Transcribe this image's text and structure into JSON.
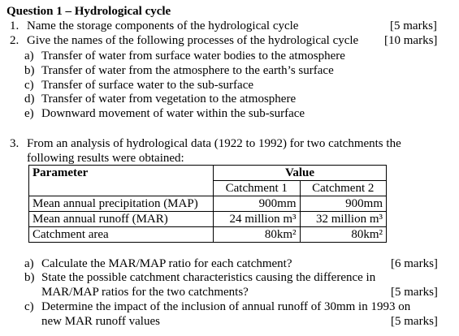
{
  "title": "Question 1 – Hydrological cycle",
  "questions": [
    {
      "number": "1.",
      "text": "Name the storage components of the hydrological cycle",
      "marks": "[5 marks]"
    },
    {
      "number": "2.",
      "text": "Give the names of the following processes of the hydrological cycle",
      "marks": "[10 marks]",
      "items": [
        {
          "label": "a)",
          "text": "Transfer of water from surface water bodies to the atmosphere"
        },
        {
          "label": "b)",
          "text": "Transfer of water from the atmosphere to the earth’s surface"
        },
        {
          "label": "c)",
          "text": "Transfer of surface water to the sub-surface"
        },
        {
          "label": "d)",
          "text": "Transfer of water from vegetation to the atmosphere"
        },
        {
          "label": "e)",
          "text": "Downward movement of water within the sub-surface"
        }
      ]
    },
    {
      "number": "3.",
      "text": "From an analysis of hydrological data (1922 to 1992) for two catchments the following results were obtained:",
      "table": {
        "header": [
          "Parameter",
          "Value"
        ],
        "subheader": [
          "Catchment 1",
          "Catchment 2"
        ],
        "rows": [
          [
            "Mean annual precipitation (MAP)",
            "900mm",
            "900mm"
          ],
          [
            "Mean annual runoff (MAR)",
            "24 million m³",
            "32 million m³"
          ],
          [
            "Catchment area",
            "80km²",
            "80km²"
          ]
        ]
      },
      "items": [
        {
          "label": "a)",
          "text": "Calculate the MAR/MAP ratio for each catchment?",
          "marks": "[6 marks]"
        },
        {
          "label": "b)",
          "text": "State the possible catchment characteristics causing the difference in MAR/MAP ratios for the two catchments?",
          "marks": "[5 marks]"
        },
        {
          "label": "c)",
          "text": "Determine the impact of the inclusion of annual runoff of 30mm in 1993 on new MAR runoff values",
          "marks": "[5 marks]"
        }
      ]
    }
  ]
}
